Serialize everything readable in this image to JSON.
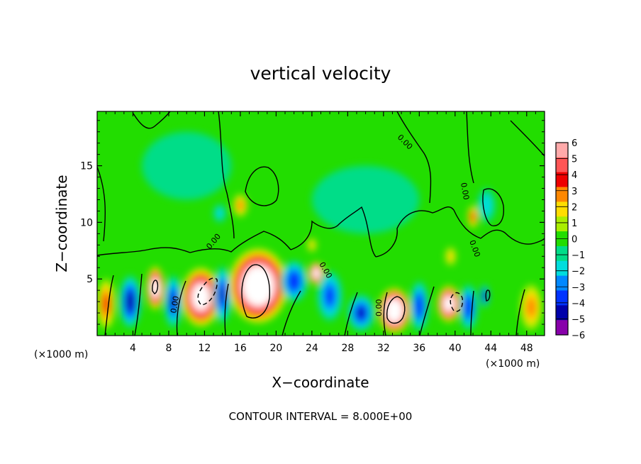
{
  "chart_data": {
    "type": "heatmap",
    "title": "vertical velocity",
    "xlabel": "X−coordinate",
    "ylabel": "Z−coordinate",
    "x_unit_left": "(×1000 m)",
    "x_unit_right": "(×1000 m)",
    "footer": "CONTOUR INTERVAL = 8.000E+00",
    "xlim": [
      0,
      50
    ],
    "ylim": [
      0,
      19.8
    ],
    "x_ticks": [
      "4",
      "8",
      "12",
      "16",
      "20",
      "24",
      "28",
      "32",
      "36",
      "40",
      "44",
      "48"
    ],
    "y_ticks": [
      "5",
      "10",
      "15"
    ],
    "colorbar_ticks": [
      "6",
      "5",
      "4",
      "3",
      "2",
      "1",
      "0",
      "−1",
      "−2",
      "−3",
      "−4",
      "−5",
      "−6"
    ],
    "colorbar_range": [
      -6,
      6
    ],
    "contour_label": "0.00",
    "background": "#22dd00",
    "colors": {
      "c6": "#ffaaaa",
      "c5": "#ff5555",
      "c4": "#ee0000",
      "c3": "#ff8800",
      "c2": "#ffdd00",
      "c1": "#aaee00",
      "c0": "#22dd00",
      "m1": "#00dd88",
      "m2": "#00dddd",
      "m3": "#0088ff",
      "m4": "#0033ff",
      "m5": "#0000aa",
      "m6": "#8800aa",
      "sat": "#ffffff"
    },
    "cells": [
      {
        "x": 1.0,
        "z": 2.8,
        "v": 3.5,
        "w": 1.0,
        "h": 2.2
      },
      {
        "x": 3.7,
        "z": 3.0,
        "v": -5.2,
        "w": 1.2,
        "h": 2.3
      },
      {
        "x": 6.5,
        "z": 4.2,
        "v": 10,
        "w": 1.0,
        "h": 1.9
      },
      {
        "x": 8.5,
        "z": 3.0,
        "v": -5.0,
        "w": 1.0,
        "h": 2.3
      },
      {
        "x": 11.6,
        "z": 3.4,
        "v": 10,
        "w": 2.2,
        "h": 2.6
      },
      {
        "x": 14.0,
        "z": 3.6,
        "v": -5.0,
        "w": 1.0,
        "h": 2.5
      },
      {
        "x": 18.0,
        "z": 4.4,
        "v": 12,
        "w": 3.3,
        "h": 3.3
      },
      {
        "x": 22.0,
        "z": 4.8,
        "v": -4.5,
        "w": 1.5,
        "h": 1.8
      },
      {
        "x": 24.5,
        "z": 5.5,
        "v": 10,
        "w": 0.9,
        "h": 1.0
      },
      {
        "x": 26.0,
        "z": 3.5,
        "v": -4.0,
        "w": 1.4,
        "h": 2.2
      },
      {
        "x": 29.5,
        "z": 2.0,
        "v": -5.0,
        "w": 1.5,
        "h": 1.6
      },
      {
        "x": 33.2,
        "z": 2.2,
        "v": 12,
        "w": 1.8,
        "h": 2.0
      },
      {
        "x": 36.0,
        "z": 2.6,
        "v": -4.5,
        "w": 1.0,
        "h": 2.2
      },
      {
        "x": 39.3,
        "z": 2.8,
        "v": 10,
        "w": 1.3,
        "h": 1.6
      },
      {
        "x": 41.5,
        "z": 2.5,
        "v": -4.5,
        "w": 1.0,
        "h": 2.0
      },
      {
        "x": 43.3,
        "z": 3.5,
        "v": -5.5,
        "w": 0.5,
        "h": 1.0
      },
      {
        "x": 48.5,
        "z": 2.5,
        "v": 3.0,
        "w": 1.2,
        "h": 2.0
      },
      {
        "x": 16.0,
        "z": 11.5,
        "v": 3.0,
        "w": 0.8,
        "h": 1.0
      },
      {
        "x": 13.7,
        "z": 10.8,
        "v": -2.0,
        "w": 0.7,
        "h": 0.8
      },
      {
        "x": 42.0,
        "z": 10.5,
        "v": 4.0,
        "w": 0.6,
        "h": 1.0
      },
      {
        "x": 43.5,
        "z": 11.5,
        "v": -2.0,
        "w": 1.0,
        "h": 1.5
      },
      {
        "x": 39.5,
        "z": 7.0,
        "v": 2.0,
        "w": 0.6,
        "h": 0.8
      },
      {
        "x": 24.0,
        "z": 8.0,
        "v": 2.0,
        "w": 0.5,
        "h": 0.6
      },
      {
        "x": 10.0,
        "z": 15.0,
        "v": -1.0,
        "w": 5.0,
        "h": 3.0
      },
      {
        "x": 30.0,
        "z": 12.0,
        "v": -1.0,
        "w": 6.0,
        "h": 3.0
      }
    ]
  }
}
